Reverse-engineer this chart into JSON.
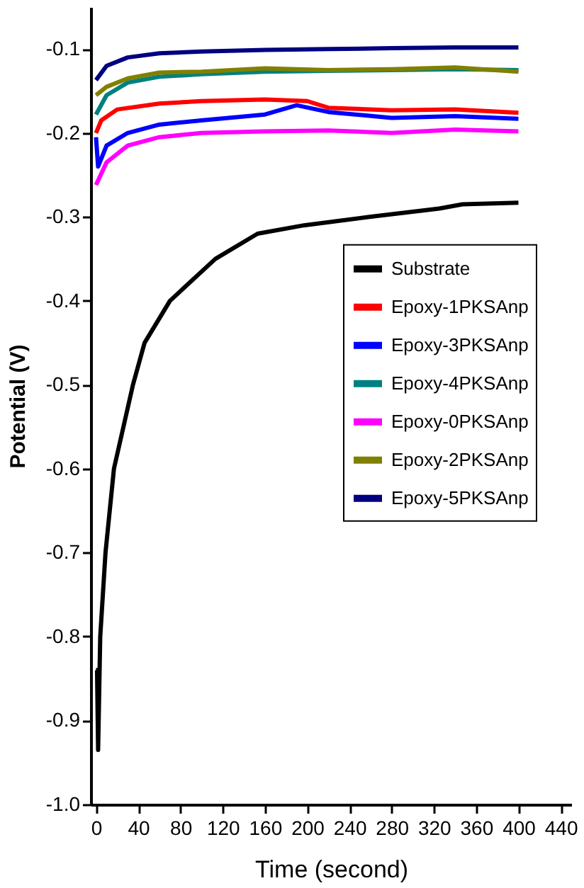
{
  "chart_data": {
    "type": "line",
    "xlabel": "Time (second)",
    "ylabel": "Potential (V)",
    "xlim": [
      -5,
      450
    ],
    "ylim": [
      -1.0,
      -0.05
    ],
    "xticks": [
      0,
      40,
      80,
      120,
      160,
      200,
      240,
      280,
      320,
      360,
      400,
      440
    ],
    "yticks": [
      {
        "value": -1.0,
        "label": "-1.0"
      },
      {
        "value": -0.9,
        "label": "-0.9"
      },
      {
        "value": -0.8,
        "label": "-0.8"
      },
      {
        "value": -0.7,
        "label": "-0.7"
      },
      {
        "value": -0.6,
        "label": "-0.6"
      },
      {
        "value": -0.5,
        "label": "-0.5"
      },
      {
        "value": -0.4,
        "label": "-0.4"
      },
      {
        "value": -0.3,
        "label": "-0.3"
      },
      {
        "value": -0.2,
        "label": "-0.2"
      },
      {
        "value": -0.1,
        "label": "-0.1"
      }
    ],
    "grid": false,
    "legend": "right",
    "marker": "none",
    "line_style": "solid",
    "series": [
      {
        "name": "Substrate",
        "color": "#000000",
        "x": [
          0,
          1,
          2,
          4,
          9,
          17,
          35,
          46,
          70,
          113,
          153,
          197,
          259,
          325,
          347,
          400
        ],
        "values": [
          -0.84,
          -0.84,
          -0.935,
          -0.8,
          -0.7,
          -0.6,
          -0.5,
          -0.45,
          -0.4,
          -0.35,
          -0.32,
          -0.31,
          -0.3,
          -0.29,
          -0.285,
          -0.283
        ]
      },
      {
        "name": "Epoxy-1PKSAnp",
        "color": "#ff0000",
        "x": [
          0,
          5,
          20,
          60,
          100,
          160,
          200,
          220,
          280,
          340,
          400
        ],
        "values": [
          -0.2,
          -0.185,
          -0.172,
          -0.165,
          -0.162,
          -0.16,
          -0.162,
          -0.17,
          -0.173,
          -0.172,
          -0.176
        ]
      },
      {
        "name": "Epoxy-3PKSAnp",
        "color": "#0000ff",
        "x": [
          0,
          2,
          10,
          30,
          60,
          100,
          160,
          190,
          220,
          280,
          340,
          400
        ],
        "values": [
          -0.205,
          -0.24,
          -0.215,
          -0.2,
          -0.19,
          -0.185,
          -0.178,
          -0.167,
          -0.175,
          -0.182,
          -0.18,
          -0.183
        ]
      },
      {
        "name": "Epoxy-4PKSAnp",
        "color": "#008080",
        "x": [
          0,
          10,
          30,
          60,
          100,
          160,
          220,
          280,
          340,
          400
        ],
        "values": [
          -0.178,
          -0.155,
          -0.14,
          -0.133,
          -0.13,
          -0.127,
          -0.126,
          -0.125,
          -0.124,
          -0.125
        ]
      },
      {
        "name": "Epoxy-0PKSAnp",
        "color": "#ff00ff",
        "x": [
          0,
          10,
          30,
          60,
          100,
          160,
          220,
          280,
          340,
          400
        ],
        "values": [
          -0.262,
          -0.235,
          -0.215,
          -0.205,
          -0.2,
          -0.198,
          -0.197,
          -0.2,
          -0.196,
          -0.198
        ]
      },
      {
        "name": "Epoxy-2PKSAnp",
        "color": "#808000",
        "x": [
          0,
          10,
          30,
          60,
          100,
          160,
          220,
          280,
          340,
          400
        ],
        "values": [
          -0.155,
          -0.145,
          -0.135,
          -0.128,
          -0.127,
          -0.123,
          -0.125,
          -0.124,
          -0.122,
          -0.127
        ]
      },
      {
        "name": "Epoxy-5PKSAnp",
        "color": "#000080",
        "x": [
          0,
          10,
          30,
          60,
          100,
          160,
          220,
          280,
          340,
          400
        ],
        "values": [
          -0.137,
          -0.12,
          -0.11,
          -0.105,
          -0.103,
          -0.101,
          -0.1,
          -0.099,
          -0.098,
          -0.098
        ]
      }
    ]
  }
}
